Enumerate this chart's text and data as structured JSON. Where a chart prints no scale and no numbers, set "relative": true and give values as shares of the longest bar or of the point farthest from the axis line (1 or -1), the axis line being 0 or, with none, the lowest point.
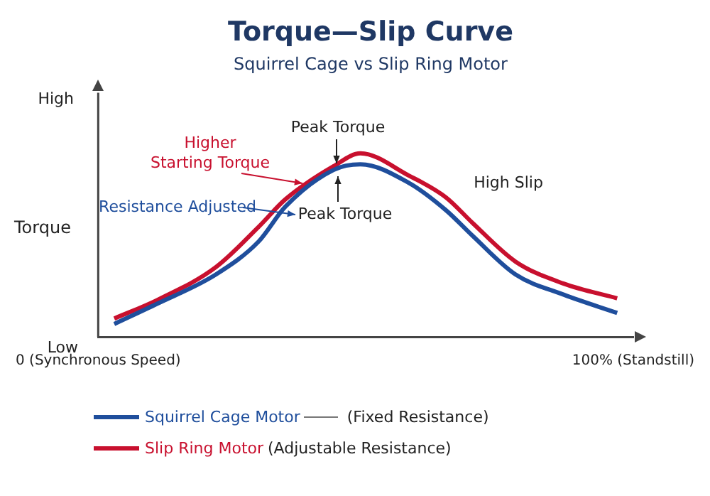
{
  "chart_data": {
    "type": "line",
    "title": "Torque—Slip Curve",
    "subtitle": "Squirrel Cage vs Slip Ring Motor",
    "ylabel": "Torque",
    "relative": true,
    "x": [
      3,
      11,
      22,
      30,
      35,
      44,
      49,
      58,
      65,
      70,
      78,
      87,
      97
    ],
    "xlim": [
      0,
      100
    ],
    "xticks": [
      {
        "value": 0,
        "label": "0 (Synchronous Speed)"
      },
      {
        "value": 100,
        "label": "100% (Standstill)"
      }
    ],
    "series": [
      {
        "name": "Squirrel Cage Motor",
        "color": "#1f4e9c",
        "values": [
          0.07,
          0.18,
          0.34,
          0.52,
          0.71,
          0.91,
          0.94,
          0.84,
          0.69,
          0.55,
          0.34,
          0.23,
          0.13
        ]
      },
      {
        "name": "Slip Ring Motor",
        "color": "#c8102e",
        "values": [
          0.1,
          0.2,
          0.38,
          0.6,
          0.75,
          0.93,
          1,
          0.88,
          0.76,
          0.62,
          0.41,
          0.29,
          0.21
        ]
      }
    ],
    "annotations": [
      "High",
      "Low",
      "Peak Torque",
      "Higher Starting Torque",
      "Resistance Adjusted",
      "Peak Torque",
      "High Slip",
      "(Fixed Resistance)",
      "(Adjustable Resistance)"
    ],
    "grid": false,
    "legend": "bottom left",
    "marker": "none",
    "line_style": "solid"
  }
}
